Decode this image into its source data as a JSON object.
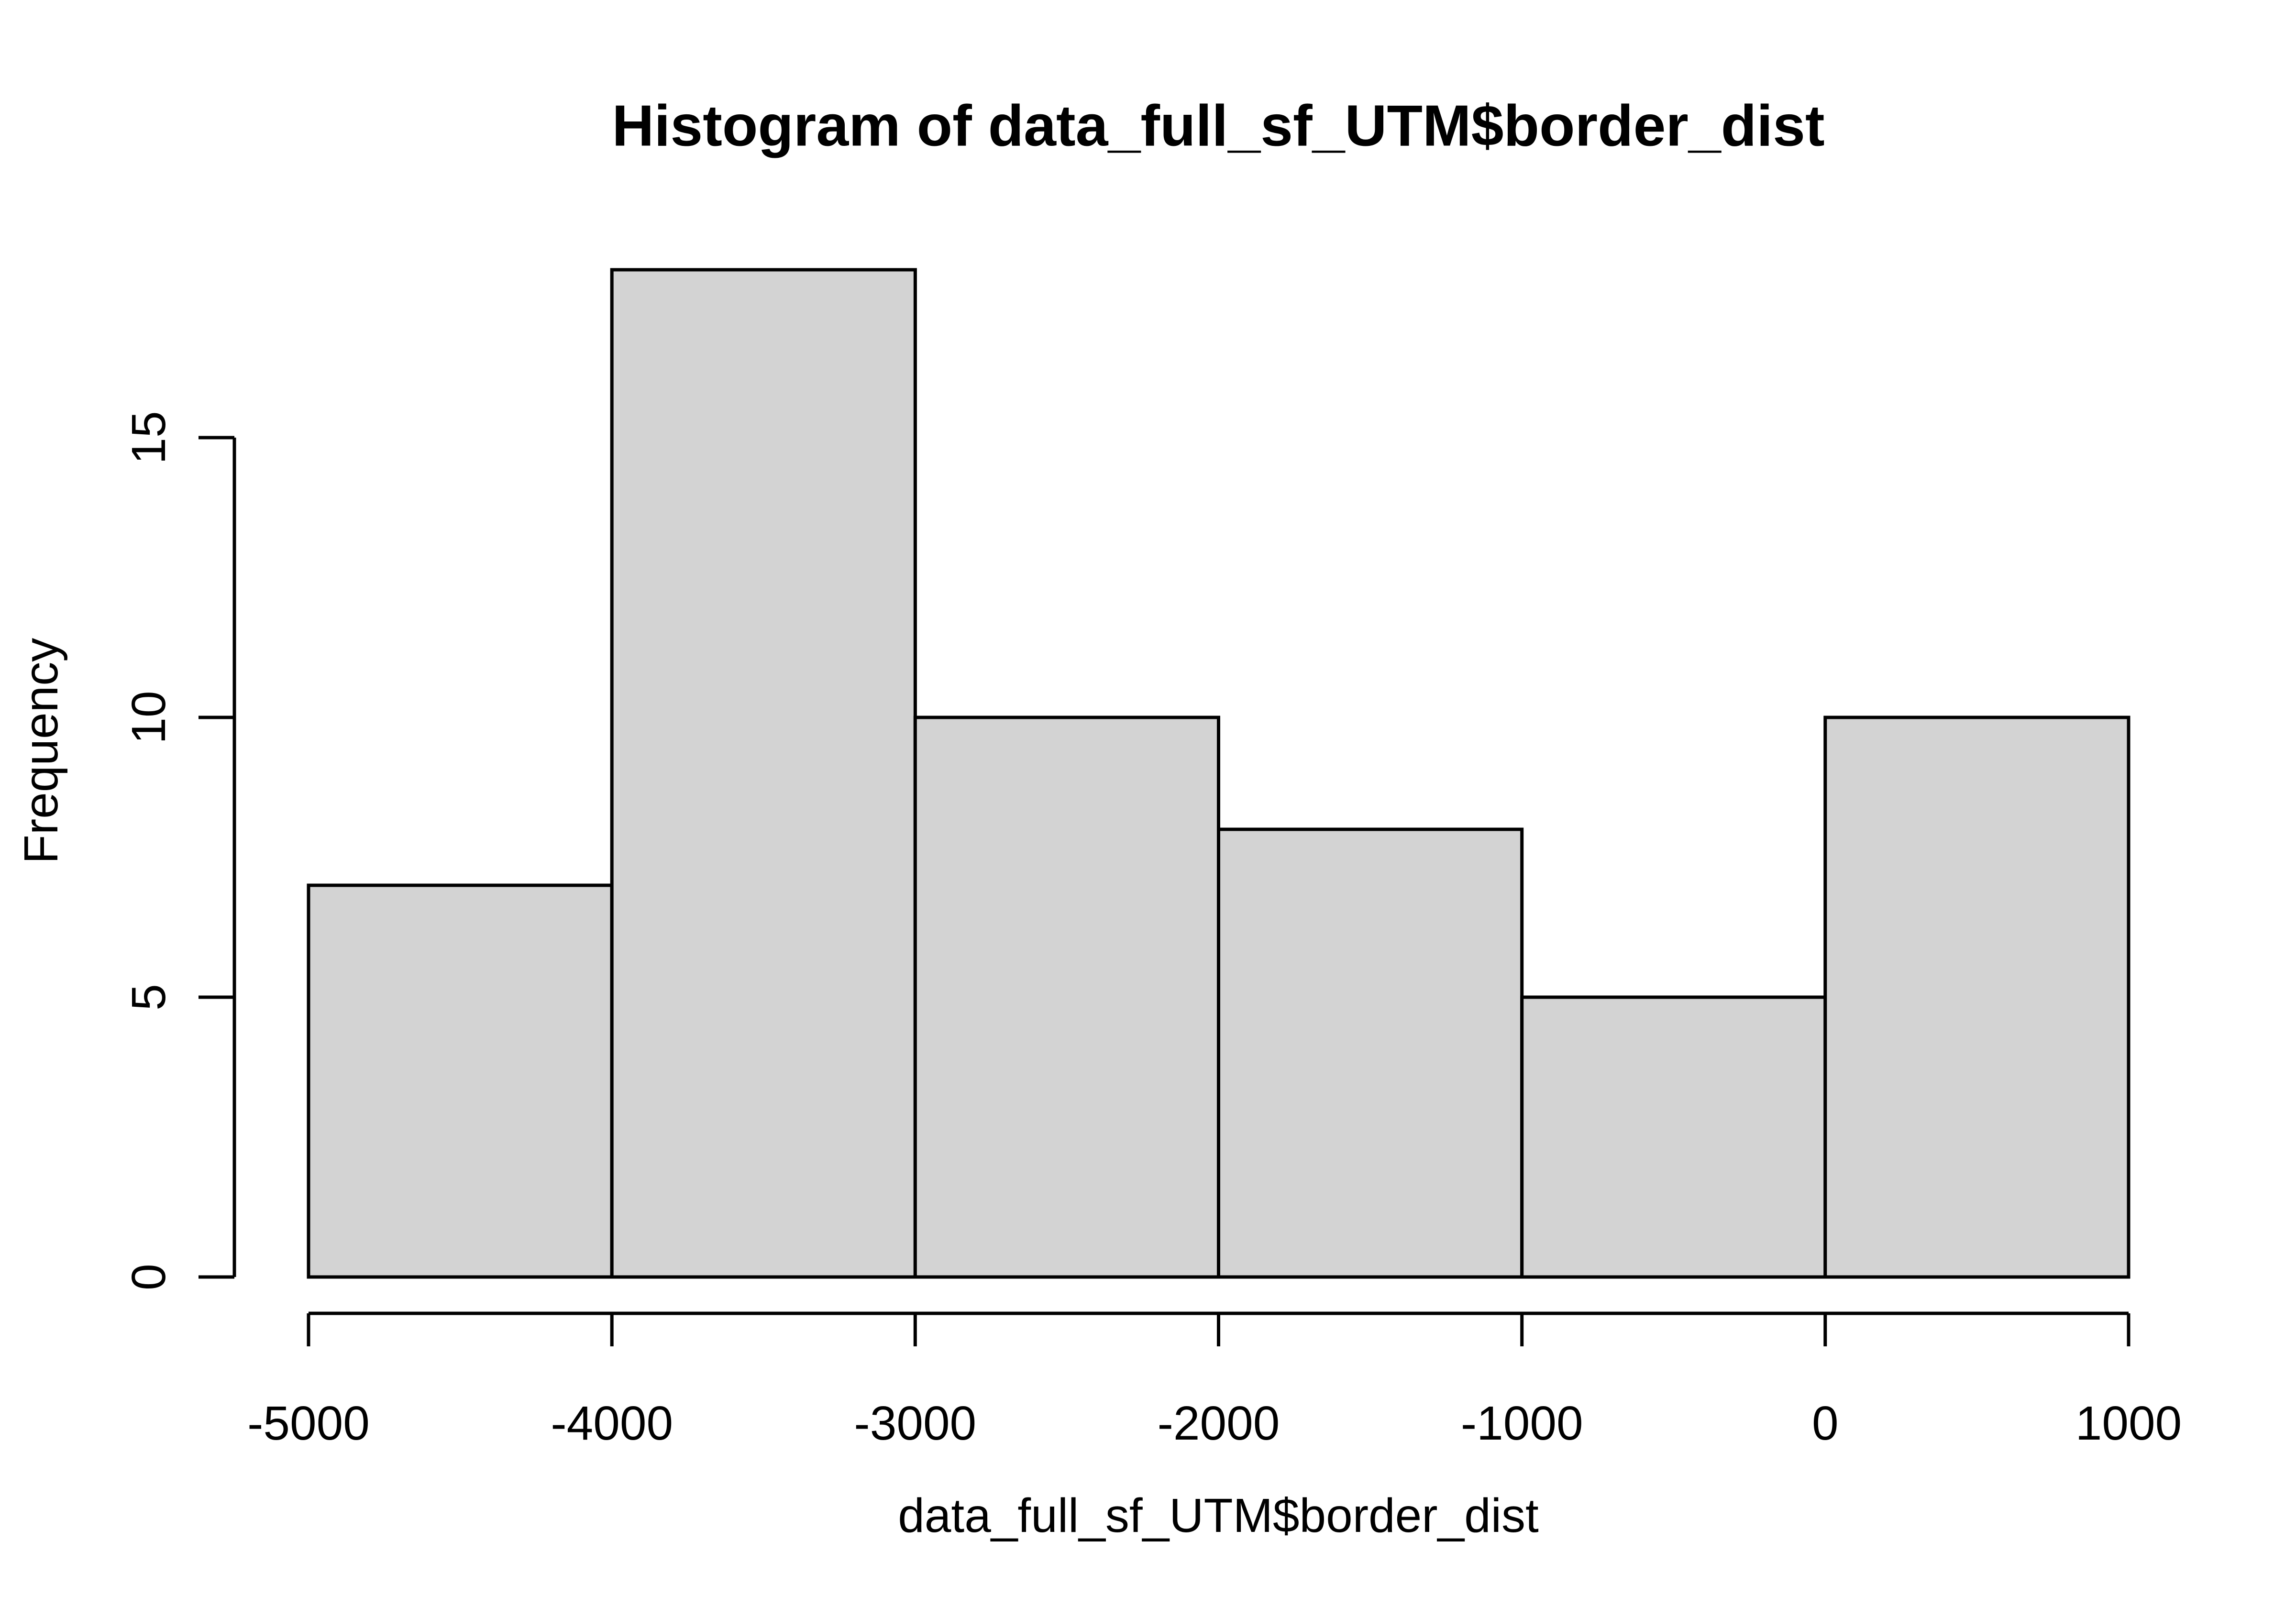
{
  "chart_data": {
    "type": "bar",
    "subtype": "histogram",
    "title": "Histogram of data_full_sf_UTM$border_dist",
    "xlabel": "data_full_sf_UTM$border_dist",
    "ylabel": "Frequency",
    "bin_edges": [
      -5000,
      -4000,
      -3000,
      -2000,
      -1000,
      0,
      1000
    ],
    "counts": [
      7,
      18,
      10,
      8,
      5,
      10
    ],
    "x_tick_labels": [
      "-5000",
      "-4000",
      "-3000",
      "-2000",
      "-1000",
      "0",
      "1000"
    ],
    "y_tick_values": [
      0,
      5,
      10,
      15
    ],
    "y_tick_labels": [
      "0",
      "5",
      "10",
      "15"
    ],
    "xlim": [
      -5000,
      1000
    ],
    "ylim": [
      0,
      18
    ],
    "grid": "off",
    "legend": "none",
    "colors": {
      "bar_fill": "#d3d3d3",
      "bar_border": "#000000",
      "axis": "#000000",
      "text": "#000000",
      "background": "#ffffff"
    }
  }
}
